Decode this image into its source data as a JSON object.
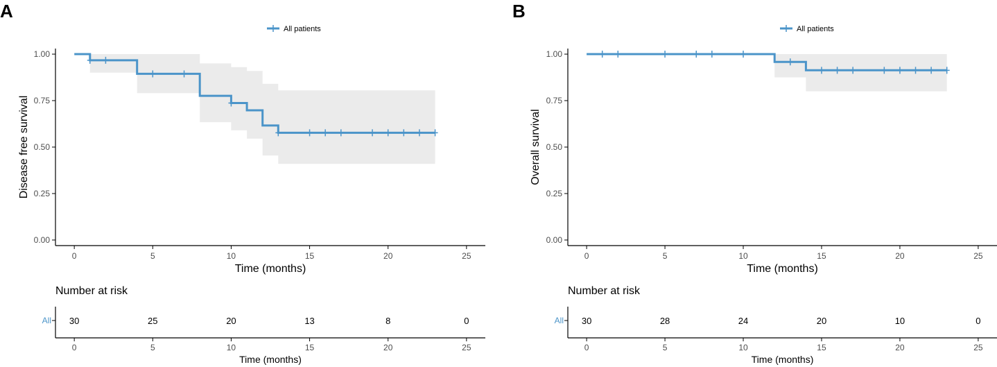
{
  "colors": {
    "curve": "#4b94c9",
    "ci_band": "#ebebeb",
    "axis": "#000000",
    "tick_text": "#4d4d4d"
  },
  "chart_data": [
    {
      "panel_label": "A",
      "type": "line",
      "subtype": "kaplan-meier",
      "legend": {
        "label": "All patients",
        "placement": "top-center"
      },
      "xlabel": "Time (months)",
      "ylabel": "Disease free survival",
      "xlim": [
        -1.2,
        26.2
      ],
      "ylim": [
        -0.03,
        1.03
      ],
      "xticks": [
        0,
        5,
        10,
        15,
        20,
        25
      ],
      "xtick_labels": [
        "0",
        "5",
        "10",
        "15",
        "20",
        "25"
      ],
      "yticks": [
        0,
        0.25,
        0.5,
        0.75,
        1
      ],
      "ytick_labels": [
        "0.00",
        "0.25",
        "0.50",
        "0.75",
        "1.00"
      ],
      "steps": [
        [
          0,
          1.0
        ],
        [
          1,
          0.967
        ],
        [
          4,
          0.894
        ],
        [
          8,
          0.776
        ],
        [
          10,
          0.737
        ],
        [
          11,
          0.698
        ],
        [
          12,
          0.616
        ],
        [
          13,
          0.577
        ],
        [
          23,
          0.577
        ]
      ],
      "ci_bands": [
        [
          0,
          1.0,
          1.0
        ],
        [
          1,
          0.9,
          1.0
        ],
        [
          4,
          0.79,
          1.0
        ],
        [
          8,
          0.634,
          0.95
        ],
        [
          10,
          0.59,
          0.93
        ],
        [
          11,
          0.545,
          0.91
        ],
        [
          12,
          0.455,
          0.84
        ],
        [
          13,
          0.41,
          0.805
        ],
        [
          23,
          0.41,
          0.805
        ]
      ],
      "censor_times": [
        1,
        2,
        5,
        7,
        10,
        13,
        15,
        16,
        17,
        19,
        20,
        21,
        22,
        23
      ],
      "risk_table": {
        "title": "Number at risk",
        "row_label": "All",
        "times": [
          0,
          5,
          10,
          15,
          20,
          25
        ],
        "counts": [
          "30",
          "25",
          "20",
          "13",
          "8",
          "0"
        ],
        "xlabel": "Time (months)",
        "xtick_labels": [
          "0",
          "5",
          "10",
          "15",
          "20",
          "25"
        ]
      }
    },
    {
      "panel_label": "B",
      "type": "line",
      "subtype": "kaplan-meier",
      "legend": {
        "label": "All patients",
        "placement": "top-center"
      },
      "xlabel": "Time (months)",
      "ylabel": "Overall survival",
      "xlim": [
        -1.2,
        26.2
      ],
      "ylim": [
        -0.03,
        1.03
      ],
      "xticks": [
        0,
        5,
        10,
        15,
        20,
        25
      ],
      "xtick_labels": [
        "0",
        "5",
        "10",
        "15",
        "20",
        "25"
      ],
      "yticks": [
        0,
        0.25,
        0.5,
        0.75,
        1
      ],
      "ytick_labels": [
        "0.00",
        "0.25",
        "0.50",
        "0.75",
        "1.00"
      ],
      "steps": [
        [
          0,
          1.0
        ],
        [
          12,
          0.958
        ],
        [
          14,
          0.913
        ],
        [
          23,
          0.913
        ]
      ],
      "ci_bands": [
        [
          0,
          1.0,
          1.0
        ],
        [
          12,
          0.875,
          1.0
        ],
        [
          14,
          0.8,
          1.0
        ],
        [
          23,
          0.8,
          1.0
        ]
      ],
      "censor_times": [
        1,
        2,
        5,
        7,
        8,
        10,
        13,
        15,
        16,
        17,
        19,
        20,
        21,
        22,
        23
      ],
      "risk_table": {
        "title": "Number at risk",
        "row_label": "All",
        "times": [
          0,
          5,
          10,
          15,
          20,
          25
        ],
        "counts": [
          "30",
          "28",
          "24",
          "20",
          "10",
          "0"
        ],
        "xlabel": "Time (months)",
        "xtick_labels": [
          "0",
          "5",
          "10",
          "15",
          "20",
          "25"
        ]
      }
    }
  ]
}
